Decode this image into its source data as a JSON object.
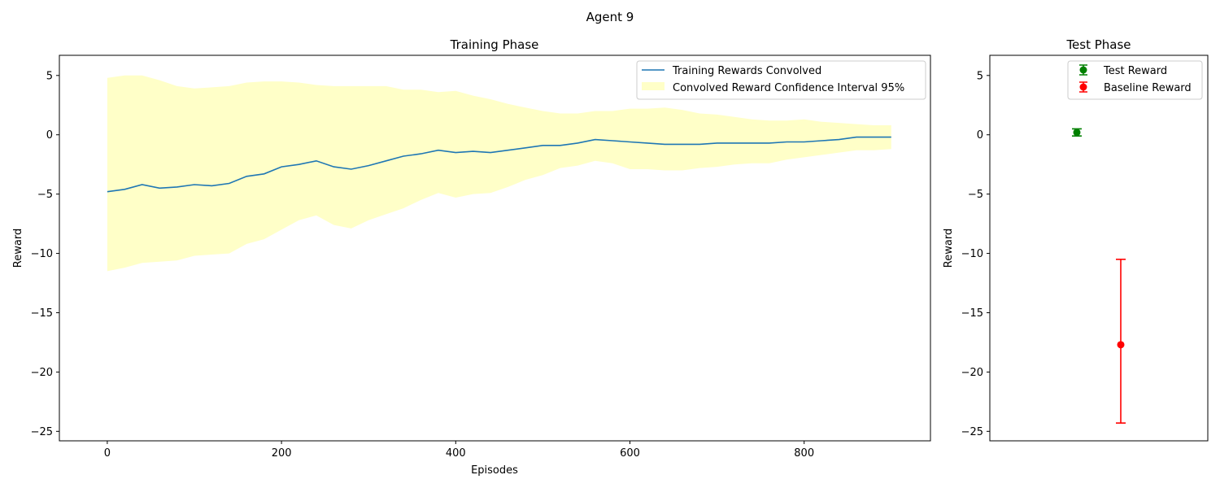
{
  "figure": {
    "title": "Agent 9"
  },
  "chart_data": [
    {
      "type": "line",
      "title": "Training Phase",
      "xlabel": "Episodes",
      "ylabel": "Reward",
      "xlim": [
        -55,
        945
      ],
      "ylim": [
        -25.8,
        6.7
      ],
      "xticks": [
        0,
        200,
        400,
        600,
        800
      ],
      "yticks": [
        5,
        0,
        -5,
        -10,
        -15,
        -20,
        -25
      ],
      "grid": false,
      "legend_position": "top-right",
      "series": [
        {
          "name": "Training Rewards Convolved",
          "color": "#1f77b4",
          "x": [
            0,
            20,
            40,
            60,
            80,
            100,
            120,
            140,
            160,
            180,
            200,
            220,
            240,
            260,
            280,
            300,
            320,
            340,
            360,
            380,
            400,
            420,
            440,
            460,
            480,
            500,
            520,
            540,
            560,
            580,
            600,
            620,
            640,
            660,
            680,
            700,
            720,
            740,
            760,
            780,
            800,
            820,
            840,
            860,
            880,
            900
          ],
          "y": [
            -4.8,
            -4.6,
            -4.2,
            -4.5,
            -4.4,
            -4.2,
            -4.3,
            -4.1,
            -3.5,
            -3.3,
            -2.7,
            -2.5,
            -2.2,
            -2.7,
            -2.9,
            -2.6,
            -2.2,
            -1.8,
            -1.6,
            -1.3,
            -1.5,
            -1.4,
            -1.5,
            -1.3,
            -1.1,
            -0.9,
            -0.9,
            -0.7,
            -0.4,
            -0.5,
            -0.6,
            -0.7,
            -0.8,
            -0.8,
            -0.8,
            -0.7,
            -0.7,
            -0.7,
            -0.7,
            -0.6,
            -0.6,
            -0.5,
            -0.4,
            -0.2,
            -0.2,
            -0.2
          ]
        },
        {
          "name": "Convolved Reward Confidence Interval 95%",
          "type": "area",
          "color": "#ffffc8",
          "x": [
            0,
            20,
            40,
            60,
            80,
            100,
            120,
            140,
            160,
            180,
            200,
            220,
            240,
            260,
            280,
            300,
            320,
            340,
            360,
            380,
            400,
            420,
            440,
            460,
            480,
            500,
            520,
            540,
            560,
            580,
            600,
            620,
            640,
            660,
            680,
            700,
            720,
            740,
            760,
            780,
            800,
            820,
            840,
            860,
            880,
            900
          ],
          "lower": [
            -11.5,
            -11.2,
            -10.8,
            -10.7,
            -10.6,
            -10.2,
            -10.1,
            -10.0,
            -9.2,
            -8.8,
            -8.0,
            -7.2,
            -6.8,
            -7.6,
            -7.9,
            -7.2,
            -6.7,
            -6.2,
            -5.5,
            -4.9,
            -5.3,
            -5.0,
            -4.9,
            -4.4,
            -3.8,
            -3.4,
            -2.8,
            -2.6,
            -2.2,
            -2.4,
            -2.9,
            -2.9,
            -3.0,
            -3.0,
            -2.8,
            -2.7,
            -2.5,
            -2.4,
            -2.4,
            -2.1,
            -1.9,
            -1.7,
            -1.5,
            -1.3,
            -1.3,
            -1.2
          ],
          "upper": [
            4.8,
            5.0,
            5.0,
            4.6,
            4.1,
            3.9,
            4.0,
            4.1,
            4.4,
            4.5,
            4.5,
            4.4,
            4.2,
            4.1,
            4.1,
            4.1,
            4.1,
            3.8,
            3.8,
            3.6,
            3.7,
            3.3,
            3.0,
            2.6,
            2.3,
            2.0,
            1.8,
            1.8,
            2.0,
            2.0,
            2.2,
            2.2,
            2.3,
            2.1,
            1.8,
            1.7,
            1.5,
            1.3,
            1.2,
            1.2,
            1.3,
            1.1,
            1.0,
            0.9,
            0.8,
            0.8
          ]
        }
      ]
    },
    {
      "type": "scatter",
      "title": "Test Phase",
      "xlabel": "",
      "ylabel": "Reward",
      "ylim": [
        -25.8,
        6.7
      ],
      "yticks": [
        5,
        0,
        -5,
        -10,
        -15,
        -20,
        -25
      ],
      "xticks": [],
      "grid": false,
      "legend_position": "top-right",
      "series": [
        {
          "name": "Test Reward",
          "color": "#008000",
          "value": 0.2,
          "err_low": -0.1,
          "err_high": 0.5
        },
        {
          "name": "Baseline Reward",
          "color": "#ff0000",
          "value": -17.7,
          "err_low": -24.3,
          "err_high": -10.5
        }
      ]
    }
  ]
}
